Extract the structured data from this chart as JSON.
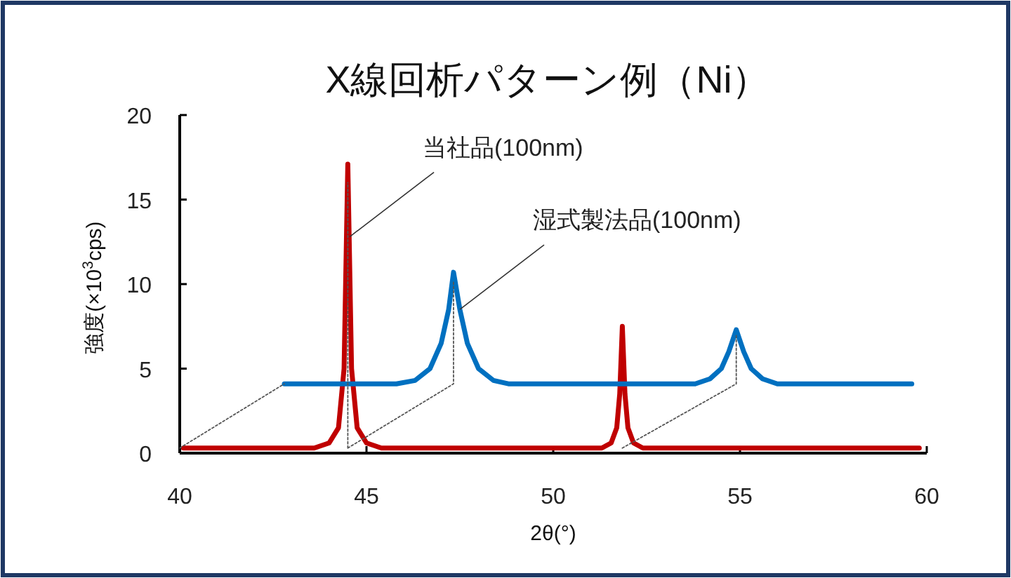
{
  "chart_data": {
    "type": "line",
    "title": "X線回析パターン例（Ni）",
    "xlabel": "2θ(°)",
    "ylabel": "強度(×10$^{3}$cps)",
    "xlim": [
      40,
      60
    ],
    "ylim": [
      0,
      20
    ],
    "xticks": [
      40,
      45,
      50,
      55,
      60
    ],
    "yticks": [
      0,
      5,
      10,
      15,
      20
    ],
    "series": [
      {
        "color": "#555555",
        "line_style": "dotted",
        "x": [
          40,
          42.8,
          null,
          44.5,
          47.33,
          47.33,
          null,
          44.5,
          44.5,
          null,
          51.85,
          54.9,
          54.9
        ],
        "values": [
          0.3,
          4.1,
          null,
          0.3,
          4.1,
          10.2,
          null,
          0.3,
          16,
          null,
          0.3,
          4.1,
          7
        ]
      },
      {
        "color": "#0070c0",
        "line_style": "solid",
        "x": [
          42.8,
          45.8,
          46.3,
          46.7,
          47.0,
          47.2,
          47.33,
          47.5,
          47.7,
          48.0,
          48.4,
          48.8,
          53.8,
          54.2,
          54.5,
          54.7,
          54.9,
          55.1,
          55.3,
          55.6,
          56.0,
          59.6
        ],
        "values": [
          4.1,
          4.1,
          4.3,
          5,
          6.5,
          8.5,
          10.7,
          8.5,
          6.5,
          5,
          4.3,
          4.1,
          4.1,
          4.4,
          5,
          6,
          7.3,
          6,
          5,
          4.4,
          4.1,
          4.1
        ]
      },
      {
        "color": "#c00000",
        "line_style": "solid",
        "x": [
          40.1,
          43.6,
          44.0,
          44.25,
          44.4,
          44.5,
          44.6,
          44.75,
          45.0,
          45.4,
          51.3,
          51.55,
          51.7,
          51.78,
          51.85,
          51.92,
          52.0,
          52.15,
          52.4,
          59.8
        ],
        "values": [
          0.3,
          0.3,
          0.6,
          1.5,
          5,
          17.1,
          5,
          1.5,
          0.6,
          0.3,
          0.3,
          0.6,
          1.5,
          3.5,
          7.5,
          3.5,
          1.5,
          0.6,
          0.3,
          0.3
        ]
      }
    ],
    "annotations": [
      {
        "text": "当社品(100nm)",
        "x": 44.55,
        "y": 12.8
      },
      {
        "text": "湿式製法品(100nm)",
        "x": 47.5,
        "y": 8.5
      }
    ]
  }
}
